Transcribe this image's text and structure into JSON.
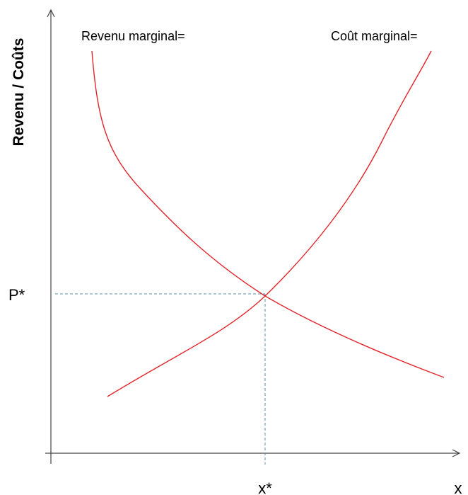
{
  "y_axis_label": "Revenu / Coûts",
  "x_axis_label": "x",
  "curves": [
    {
      "label": "Revenu marginal="
    },
    {
      "label": "Coût marginal="
    }
  ],
  "equilibrium": {
    "price_label": "P*",
    "quantity_label": "x*"
  }
}
